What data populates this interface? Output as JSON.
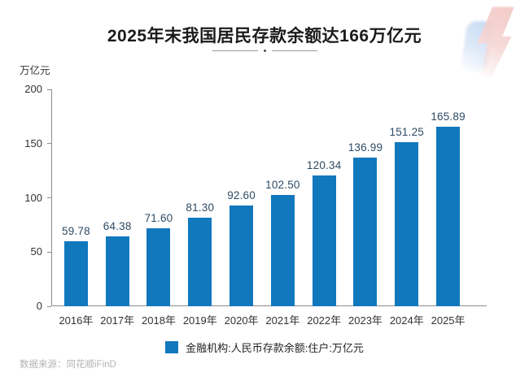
{
  "page": {
    "title": "2025年末我国居民存款余额达166万亿元",
    "unit_label": "万亿元",
    "source": "数据来源：同花顺iFinD"
  },
  "colors": {
    "bar": "#1278BE",
    "value_label": "#2E4A64",
    "axis": "#8C8C8C",
    "title": "#1B1B1B",
    "source": "#B3B3B3"
  },
  "legend": {
    "label": "金融机构:人民币存款余额:住户:万亿元",
    "swatch_color": "#1278BE",
    "position": "bottom"
  },
  "chart_data": {
    "type": "bar",
    "title": "2025年末我国居民存款余额达166万亿元",
    "categories": [
      "2016年",
      "2017年",
      "2018年",
      "2019年",
      "2020年",
      "2021年",
      "2022年",
      "2023年",
      "2024年",
      "2025年"
    ],
    "values": [
      59.78,
      64.38,
      71.6,
      81.3,
      92.6,
      102.5,
      120.34,
      136.99,
      151.25,
      165.89
    ],
    "value_label_decimals": 2,
    "xlabel": "",
    "ylabel": "万亿元",
    "ylim": [
      0,
      200
    ],
    "yticks": [
      0,
      50,
      100,
      150,
      200
    ],
    "grid": false,
    "legend_entries": [
      "金融机构:人民币存款余额:住户:万亿元"
    ],
    "legend_position": "bottom"
  }
}
